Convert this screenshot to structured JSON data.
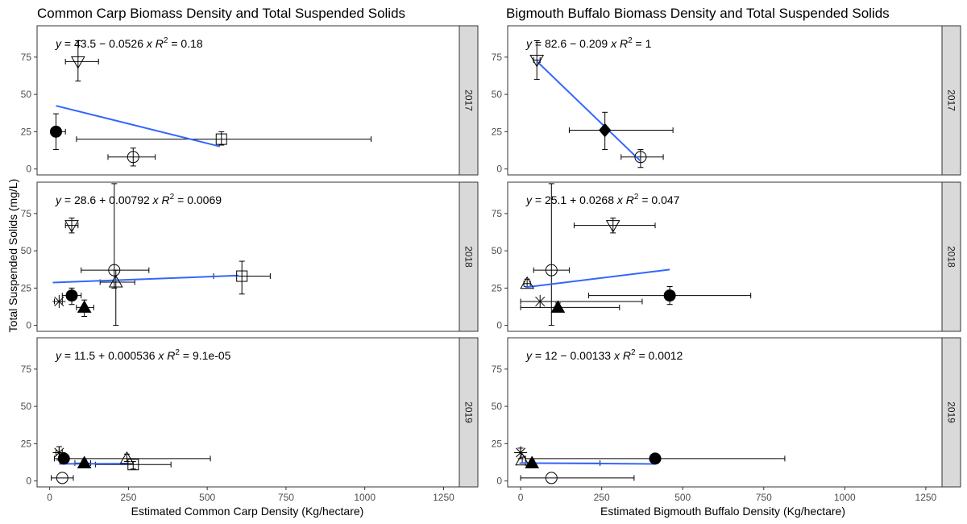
{
  "shared_ylabel": "Total Suspended Solids (mg/L)",
  "chart_data": [
    {
      "type": "scatter",
      "title": "Common Carp Biomass Density and Total Suspended Solids",
      "xlabel": "Estimated Common Carp Density (Kg/hectare)",
      "ylabel": "Total Suspended Solids (mg/L)",
      "xlim": [
        -40,
        1300
      ],
      "ylim": [
        -4,
        96
      ],
      "x_ticks": [
        0,
        250,
        500,
        750,
        1000,
        1250
      ],
      "y_ticks": [
        0,
        25,
        50,
        75
      ],
      "grid": false,
      "facets": [
        {
          "strip": "2017",
          "equation": {
            "intercept": "43.5",
            "sign": "−",
            "slope": "0.0526",
            "r2": "0.18"
          },
          "fit": {
            "color": "#3366FF",
            "x": [
              20,
              540
            ],
            "y": [
              42.4,
              15.1
            ]
          },
          "points": [
            {
              "shape": "down-triangle",
              "x": 90,
              "y": 72,
              "xlo": 50,
              "xhi": 155,
              "ylo": 59,
              "yhi": 86
            },
            {
              "shape": "filled-circle",
              "x": 20,
              "y": 25,
              "xlo": 12,
              "xhi": 50,
              "ylo": 13,
              "yhi": 37
            },
            {
              "shape": "square",
              "x": 545,
              "y": 20,
              "xlo": 85,
              "xhi": 1020,
              "ylo": 16,
              "yhi": 25
            },
            {
              "shape": "open-circle",
              "x": 265,
              "y": 8,
              "xlo": 185,
              "xhi": 335,
              "ylo": 2,
              "yhi": 14
            }
          ]
        },
        {
          "strip": "2018",
          "equation": {
            "intercept": "28.6",
            "sign": "+",
            "slope": "0.00792",
            "r2": "0.0069"
          },
          "fit": {
            "color": "#3366FF",
            "x": [
              10,
              600
            ],
            "y": [
              28.7,
              33.4
            ]
          },
          "points": [
            {
              "shape": "down-triangle",
              "x": 70,
              "y": 67,
              "xlo": 50,
              "xhi": 90,
              "ylo": 62,
              "yhi": 72
            },
            {
              "shape": "open-circle",
              "x": 205,
              "y": 37,
              "xlo": 100,
              "xhi": 315,
              "ylo": 25,
              "yhi": 95
            },
            {
              "shape": "square",
              "x": 610,
              "y": 33,
              "xlo": 520,
              "xhi": 700,
              "ylo": 21,
              "yhi": 43
            },
            {
              "shape": "triangle",
              "x": 210,
              "y": 29,
              "xlo": 160,
              "xhi": 270,
              "ylo": 0,
              "yhi": 37
            },
            {
              "shape": "filled-circle",
              "x": 70,
              "y": 20,
              "xlo": 40,
              "xhi": 100,
              "ylo": 14,
              "yhi": 25
            },
            {
              "shape": "filled-triangle",
              "x": 110,
              "y": 12,
              "xlo": 85,
              "xhi": 140,
              "ylo": 6,
              "yhi": 17
            },
            {
              "shape": "asterisk",
              "x": 30,
              "y": 16,
              "xlo": 15,
              "xhi": 40,
              "ylo": 16,
              "yhi": 16
            }
          ]
        },
        {
          "strip": "2019",
          "equation": {
            "intercept": "11.5",
            "sign": "+",
            "slope": "0.000536",
            "r2": "9.1e-05"
          },
          "fit": {
            "color": "#3366FF",
            "x": [
              30,
              250
            ],
            "y": [
              11.5,
              11.6
            ]
          },
          "points": [
            {
              "shape": "asterisk",
              "x": 30,
              "y": 19,
              "xlo": 20,
              "xhi": 40,
              "ylo": 14,
              "yhi": 23
            },
            {
              "shape": "filled-circle",
              "x": 45,
              "y": 15,
              "xlo": 15,
              "xhi": 510,
              "ylo": 14,
              "yhi": 16
            },
            {
              "shape": "triangle",
              "x": 245,
              "y": 15,
              "xlo": 245,
              "xhi": 245,
              "ylo": 13,
              "yhi": 18
            },
            {
              "shape": "filled-triangle",
              "x": 110,
              "y": 12,
              "xlo": 80,
              "xhi": 130,
              "ylo": 10,
              "yhi": 14
            },
            {
              "shape": "square",
              "x": 265,
              "y": 11,
              "xlo": 145,
              "xhi": 385,
              "ylo": 8,
              "yhi": 13
            },
            {
              "shape": "open-circle",
              "x": 40,
              "y": 2,
              "xlo": 5,
              "xhi": 75,
              "ylo": 2,
              "yhi": 2
            }
          ]
        }
      ]
    },
    {
      "type": "scatter",
      "title": "Bigmouth Buffalo Biomass Density and Total Suspended Solids",
      "xlabel": "Estimated Bigmouth Buffalo Density (Kg/hectare)",
      "ylabel": "Total Suspended Solids (mg/L)",
      "xlim": [
        -40,
        1300
      ],
      "ylim": [
        -4,
        96
      ],
      "x_ticks": [
        0,
        250,
        500,
        750,
        1000,
        1250
      ],
      "y_ticks": [
        0,
        25,
        50,
        75
      ],
      "grid": false,
      "facets": [
        {
          "strip": "2017",
          "equation": {
            "intercept": "82.6",
            "sign": "−",
            "slope": "0.209",
            "r2": "1"
          },
          "fit": {
            "color": "#3366FF",
            "x": [
              50,
              370
            ],
            "y": [
              72.2,
              5.3
            ]
          },
          "points": [
            {
              "shape": "down-triangle",
              "x": 50,
              "y": 73,
              "xlo": 40,
              "xhi": 60,
              "ylo": 60,
              "yhi": 86
            },
            {
              "shape": "filled-diamond",
              "x": 260,
              "y": 26,
              "xlo": 150,
              "xhi": 470,
              "ylo": 13,
              "yhi": 38
            },
            {
              "shape": "open-circle",
              "x": 370,
              "y": 8,
              "xlo": 310,
              "xhi": 440,
              "ylo": 1,
              "yhi": 13
            }
          ]
        },
        {
          "strip": "2018",
          "equation": {
            "intercept": "25.1",
            "sign": "+",
            "slope": "0.0268",
            "r2": "0.047"
          },
          "fit": {
            "color": "#3366FF",
            "x": [
              15,
              460
            ],
            "y": [
              25.5,
              37.4
            ]
          },
          "points": [
            {
              "shape": "down-triangle",
              "x": 285,
              "y": 67,
              "xlo": 165,
              "xhi": 415,
              "ylo": 62,
              "yhi": 72
            },
            {
              "shape": "open-circle",
              "x": 95,
              "y": 37,
              "xlo": 40,
              "xhi": 150,
              "ylo": 0,
              "yhi": 95
            },
            {
              "shape": "triangle",
              "x": 20,
              "y": 28,
              "xlo": 10,
              "xhi": 30,
              "ylo": 26,
              "yhi": 31
            },
            {
              "shape": "filled-circle",
              "x": 460,
              "y": 20,
              "xlo": 210,
              "xhi": 710,
              "ylo": 14,
              "yhi": 26
            },
            {
              "shape": "asterisk",
              "x": 60,
              "y": 16,
              "xlo": 0,
              "xhi": 375,
              "ylo": 16,
              "yhi": 16
            },
            {
              "shape": "filled-triangle",
              "x": 115,
              "y": 12,
              "xlo": 0,
              "xhi": 305,
              "ylo": 9,
              "yhi": 15
            }
          ]
        },
        {
          "strip": "2019",
          "equation": {
            "intercept": "12",
            "sign": "−",
            "slope": "0.00133",
            "r2": "0.0012"
          },
          "fit": {
            "color": "#3366FF",
            "x": [
              0,
              415
            ],
            "y": [
              12,
              11.4
            ]
          },
          "points": [
            {
              "shape": "asterisk",
              "x": 0,
              "y": 19,
              "xlo": 0,
              "xhi": 0,
              "ylo": 15,
              "yhi": 22
            },
            {
              "shape": "triangle",
              "x": 5,
              "y": 14,
              "xlo": 5,
              "xhi": 5,
              "ylo": 12,
              "yhi": 16
            },
            {
              "shape": "filled-circle",
              "x": 415,
              "y": 15,
              "xlo": 15,
              "xhi": 815,
              "ylo": 14,
              "yhi": 16
            },
            {
              "shape": "filled-triangle",
              "x": 35,
              "y": 12,
              "xlo": 15,
              "xhi": 245,
              "ylo": 10,
              "yhi": 14
            },
            {
              "shape": "open-circle",
              "x": 95,
              "y": 2,
              "xlo": 0,
              "xhi": 350,
              "ylo": 2,
              "yhi": 2
            }
          ]
        }
      ]
    }
  ]
}
